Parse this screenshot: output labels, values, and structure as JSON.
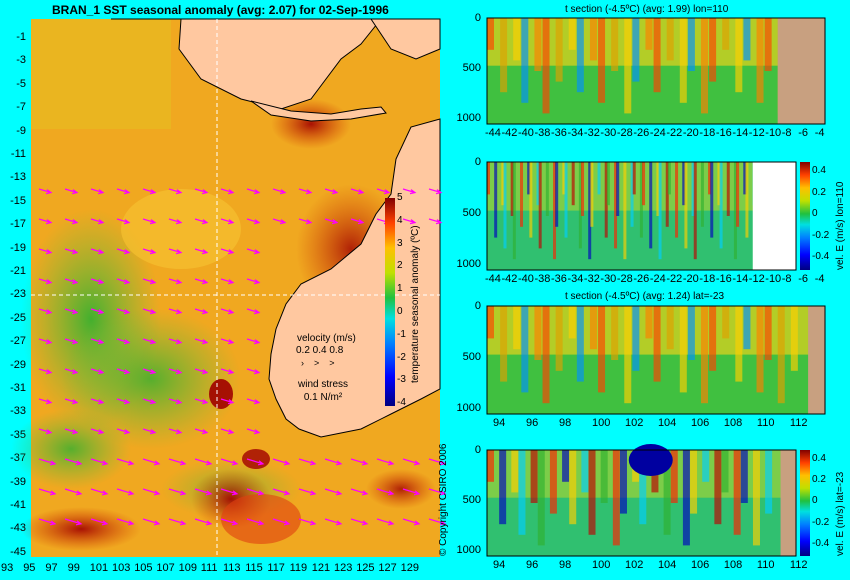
{
  "main_map": {
    "title": "BRAN_1  SST seasonal anomaly  (avg: 2.07)  for 02-Sep-1996",
    "lat_ticks": [
      "-1",
      "-3",
      "-5",
      "-7",
      "-9",
      "-11",
      "-13",
      "-15",
      "-17",
      "-19",
      "-21",
      "-23",
      "-25",
      "-27",
      "-29",
      "-31",
      "-33",
      "-35",
      "-37",
      "-39",
      "-41",
      "-43",
      "-45"
    ],
    "lon_ticks": [
      "93",
      "95",
      "97",
      "99",
      "101",
      "103",
      "105",
      "107",
      "109",
      "111",
      "113",
      "115",
      "117",
      "119",
      "121",
      "123",
      "125",
      "127",
      "129"
    ],
    "colorbar": {
      "label": "temperature seasonal anomaly (ºC)",
      "ticks": [
        "5",
        "4",
        "3",
        "2",
        "1",
        "0",
        "-1",
        "-2",
        "-3",
        "-4"
      ]
    },
    "velocity_legend": {
      "title": "velocity (m/s)",
      "values": "0.2 0.4 0.8"
    },
    "wind_legend": {
      "title": "wind stress",
      "value": "0.1 N/m²"
    },
    "copyright": "© Copyright CSIRO 2006",
    "colors": {
      "ocean_mid": "#f2b020",
      "land": "#ffc8a0",
      "wind_arrow": "#ff00ff"
    }
  },
  "panels": [
    {
      "title": "t section (-4.5ºC)  (avg: 1.99)  lon=110",
      "y_ticks": [
        "0",
        "500",
        "1000"
      ],
      "x_ticks": [
        "-44",
        "-42",
        "-40",
        "-38",
        "-36",
        "-34",
        "-32",
        "-30",
        "-28",
        "-26",
        "-24",
        "-22",
        "-20",
        "-18",
        "-16",
        "-14",
        "-12",
        "-10",
        "-8",
        "-6",
        "-4"
      ]
    },
    {
      "title": "",
      "y_ticks": [
        "0",
        "500",
        "1000"
      ],
      "x_ticks": [
        "-44",
        "-42",
        "-40",
        "-38",
        "-36",
        "-34",
        "-32",
        "-30",
        "-28",
        "-26",
        "-24",
        "-22",
        "-20",
        "-18",
        "-16",
        "-14",
        "-12",
        "-10",
        "-8",
        "-6",
        "-4"
      ],
      "cbar_label": "vel. E (m/s) lon=110",
      "cbar_ticks": [
        "0.4",
        "0.2",
        "0",
        "-0.2",
        "-0.4"
      ]
    },
    {
      "title": "t section (-4.5ºC)  (avg: 1.24)  lat=-23",
      "y_ticks": [
        "0",
        "500",
        "1000"
      ],
      "x_ticks": [
        "94",
        "96",
        "98",
        "100",
        "102",
        "104",
        "106",
        "108",
        "110",
        "112"
      ]
    },
    {
      "title": "",
      "y_ticks": [
        "0",
        "500",
        "1000"
      ],
      "x_ticks": [
        "94",
        "96",
        "98",
        "100",
        "102",
        "104",
        "106",
        "108",
        "110",
        "112"
      ],
      "cbar_label": "vel. E (m/s) lat=-23",
      "cbar_ticks": [
        "0.4",
        "0.2",
        "0",
        "-0.2",
        "-0.4"
      ]
    }
  ],
  "chart_data": [
    {
      "type": "heatmap",
      "title": "BRAN_1  SST seasonal anomaly  (avg: 2.07)  for 02-Sep-1996",
      "xlim": [
        93,
        130
      ],
      "ylim": [
        -45,
        0
      ],
      "clim": [
        -4,
        5
      ],
      "mean": 2.07,
      "colorbar_label": "temperature seasonal anomaly (ºC)"
    },
    {
      "type": "heatmap",
      "title": "t section (-4.5ºC)  (avg: 1.99)  lon=110",
      "xlim": [
        -45,
        -3
      ],
      "ylim": [
        1050,
        0
      ],
      "mean": 1.99
    },
    {
      "type": "heatmap",
      "title": "",
      "xlim": [
        -45,
        -3
      ],
      "ylim": [
        1050,
        0
      ],
      "clim": [
        -0.4,
        0.4
      ],
      "colorbar_label": "vel. E (m/s) lon=110"
    },
    {
      "type": "heatmap",
      "title": "t section (-4.5ºC)  (avg: 1.24)  lat=-23",
      "xlim": [
        93,
        114
      ],
      "ylim": [
        1050,
        0
      ],
      "mean": 1.24
    },
    {
      "type": "heatmap",
      "title": "",
      "xlim": [
        93,
        114
      ],
      "ylim": [
        1050,
        0
      ],
      "clim": [
        -0.4,
        0.4
      ],
      "colorbar_label": "vel. E (m/s) lat=-23"
    }
  ]
}
